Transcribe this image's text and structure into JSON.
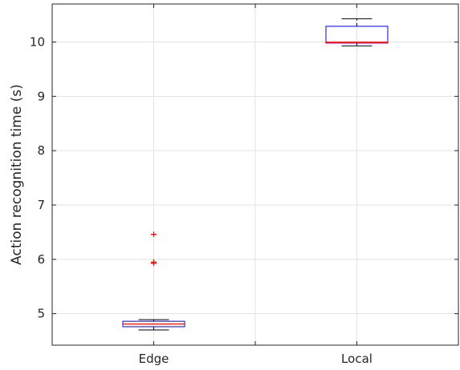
{
  "chart_data": {
    "type": "box",
    "title": "",
    "xlabel": "",
    "ylabel": "Action recognition time (s)",
    "categories": [
      "Edge",
      "Local"
    ],
    "ylim": [
      4.42,
      10.7
    ],
    "yticks": [
      5,
      6,
      7,
      8,
      9,
      10
    ],
    "ytick_labels": [
      "5",
      "6",
      "7",
      "8",
      "9",
      "10"
    ],
    "grid": true,
    "boxes": [
      {
        "category": "Edge",
        "whisker_low": 4.7,
        "q1": 4.76,
        "median": 4.81,
        "q3": 4.86,
        "whisker_high": 4.89,
        "outliers": [
          5.93,
          5.95,
          6.46
        ]
      },
      {
        "category": "Local",
        "whisker_low": 9.93,
        "q1": 9.98,
        "median": 10.0,
        "q3": 10.29,
        "whisker_high": 10.43,
        "outliers": []
      }
    ],
    "colors": {
      "box": "#0000ff",
      "median": "#ff0000",
      "whisker": "#000000",
      "outlier": "#ff0000",
      "grid": "#e3e3e3",
      "axis": "#262626"
    }
  }
}
